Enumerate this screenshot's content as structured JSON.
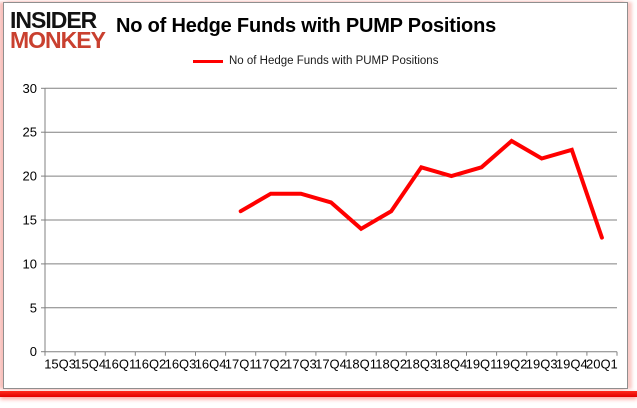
{
  "logo": {
    "line1": "INSIDER",
    "line2": "MONKEY",
    "color": "#c9402f"
  },
  "header": {
    "title": "No of Hedge Funds with PUMP Positions"
  },
  "legend": {
    "label": "No of Hedge Funds with PUMP Positions",
    "line_color": "#ff0000"
  },
  "chart_data": {
    "type": "line",
    "title": "No of Hedge Funds with PUMP Positions",
    "xlabel": "",
    "ylabel": "",
    "categories": [
      "15Q3",
      "15Q4",
      "16Q1",
      "16Q2",
      "16Q3",
      "16Q4",
      "17Q1",
      "17Q2",
      "17Q3",
      "17Q4",
      "18Q1",
      "18Q2",
      "18Q3",
      "18Q4",
      "19Q1",
      "19Q2",
      "19Q3",
      "19Q4",
      "20Q1"
    ],
    "series": [
      {
        "name": "No of Hedge Funds with PUMP Positions",
        "color": "#ff0000",
        "values": [
          null,
          null,
          null,
          null,
          null,
          null,
          16,
          18,
          18,
          17,
          14,
          16,
          21,
          20,
          21,
          24,
          22,
          23,
          13
        ]
      }
    ],
    "ylim": [
      0,
      30
    ],
    "ytick_step": 5,
    "yticks": [
      0,
      5,
      10,
      15,
      20,
      25,
      30
    ],
    "grid": "horizontal",
    "legend_position": "top-center",
    "axis_color": "#808080",
    "label_color": "#000000"
  }
}
